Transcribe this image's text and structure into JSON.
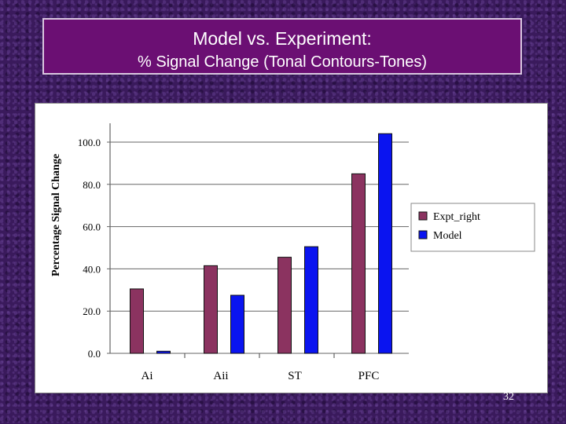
{
  "title": {
    "line1": "Model vs. Experiment:",
    "line2": "% Signal Change (Tonal Contours-Tones)"
  },
  "slide_number": "32",
  "colors": {
    "expt": "#8b3360",
    "model": "#0a14f0",
    "title_bg": "#6b0f73"
  },
  "chart_data": {
    "type": "bar",
    "title": "",
    "xlabel": "",
    "ylabel": "Percentage Signal Change",
    "ylim": [
      0,
      100
    ],
    "yticks": [
      "0.0",
      "20.0",
      "40.0",
      "60.0",
      "80.0",
      "100.0"
    ],
    "categories": [
      "Ai",
      "Aii",
      "ST",
      "PFC"
    ],
    "series": [
      {
        "name": "Expt_right",
        "values": [
          30.5,
          41.5,
          45.5,
          85.0
        ]
      },
      {
        "name": "Model",
        "values": [
          1.0,
          27.5,
          50.5,
          104.0
        ]
      }
    ],
    "legend_position": "right",
    "grid": false
  }
}
